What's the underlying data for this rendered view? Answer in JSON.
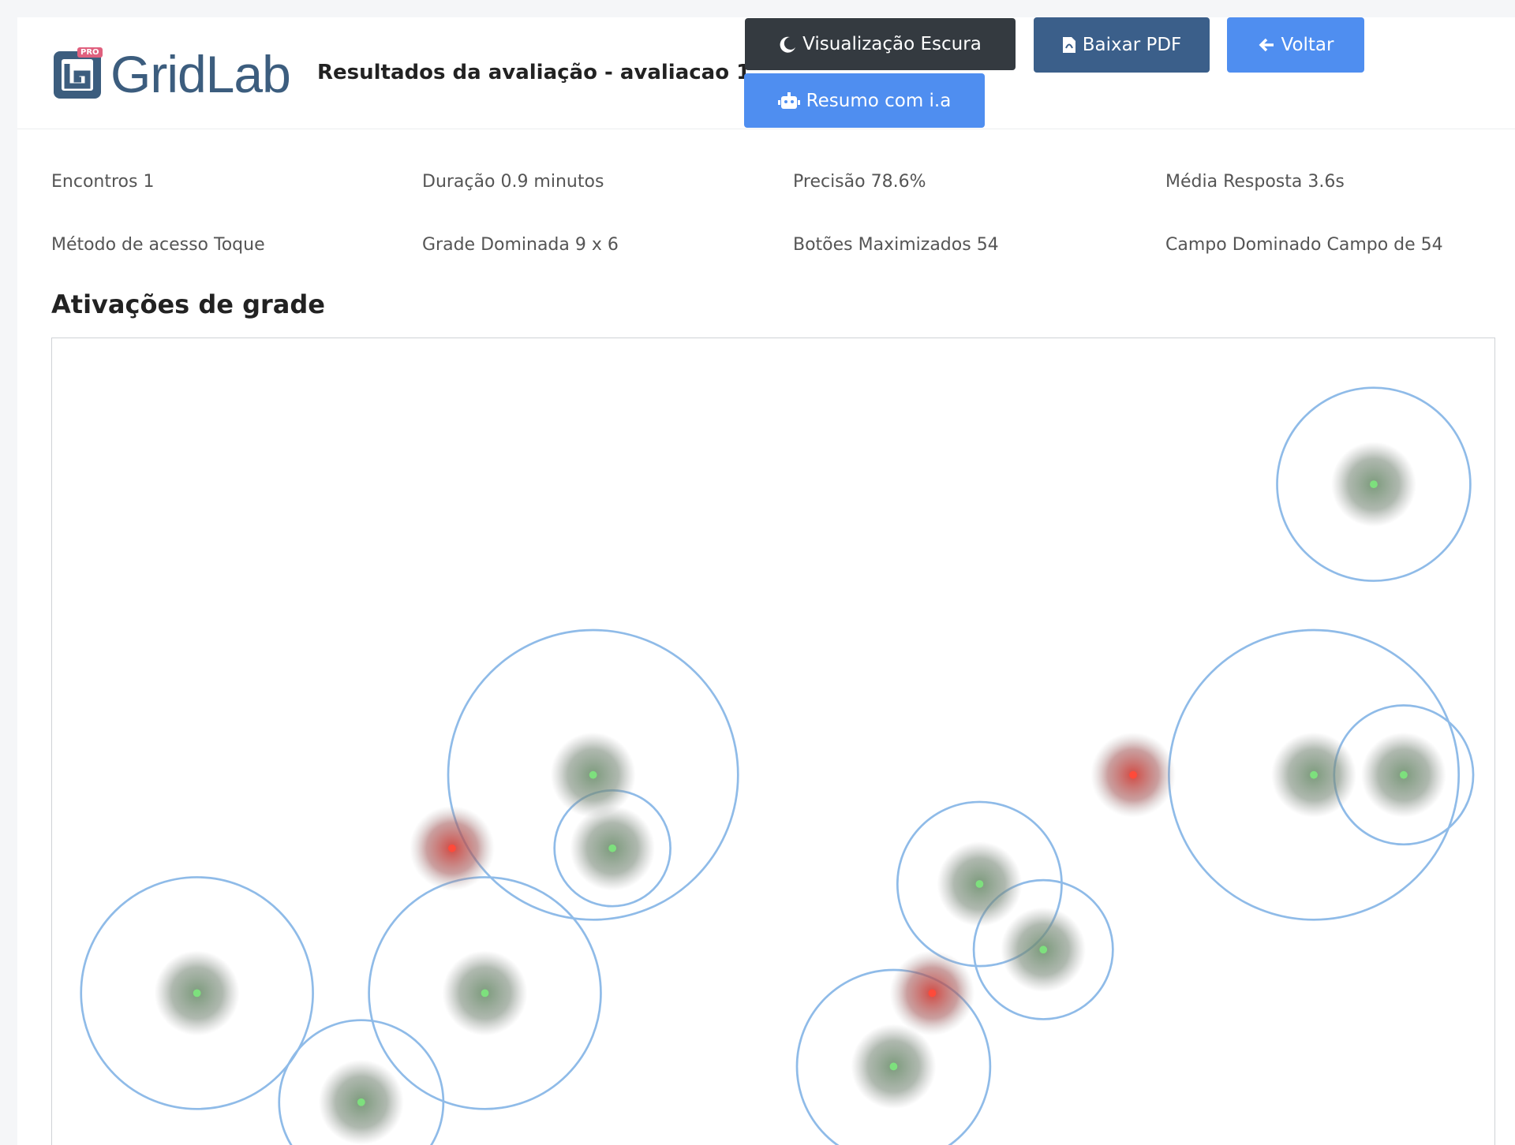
{
  "header": {
    "logo": {
      "text": "GridLab",
      "badge": "PRO"
    },
    "title": "Resultados da avaliação - avaliacao 1"
  },
  "buttons": {
    "dark": "Visualização Escura",
    "pdf": "Baixar PDF",
    "back": "Voltar",
    "summary": "Resumo com i.a"
  },
  "stats": [
    [
      {
        "label": "Encontros",
        "value": "1"
      },
      {
        "label": "Duração",
        "value": "0.9 minutos"
      },
      {
        "label": "Precisão",
        "value": "78.6%"
      },
      {
        "label": "Média Resposta",
        "value": "3.6s"
      }
    ],
    [
      {
        "label": "Método de acesso",
        "value": "Toque"
      },
      {
        "label": "Grade Dominada",
        "value": "9 x 6"
      },
      {
        "label": "Botões Maximizados",
        "value": "54"
      },
      {
        "label": "Campo Dominado",
        "value": "Campo de 54"
      }
    ]
  ],
  "section": {
    "title": "Ativações de grade"
  }
}
